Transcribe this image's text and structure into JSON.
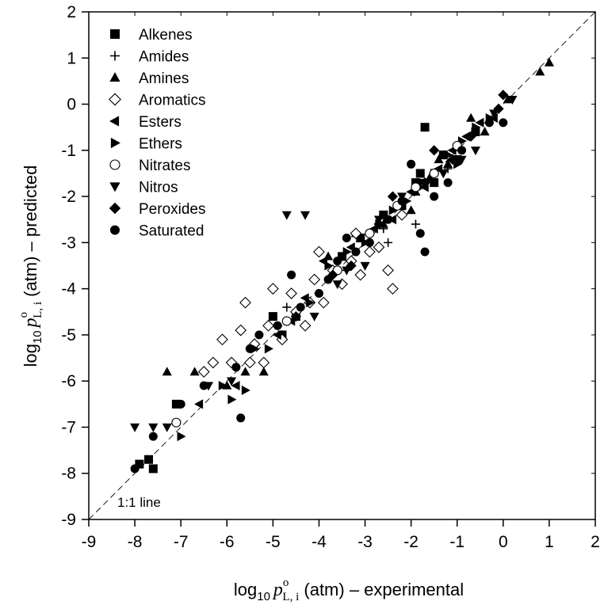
{
  "chart_data": {
    "type": "scatter",
    "xlabel": {
      "prefix": "log",
      "sub10": "10",
      "var": "p",
      "sup": "o",
      "sub": "L, i",
      "suffix": " (atm) – experimental"
    },
    "ylabel": {
      "prefix": "log",
      "sub10": "10",
      "var": "p",
      "sup": "o",
      "sub": "L, i",
      "suffix": " (atm) – predicted"
    },
    "xlim": [
      -9,
      2
    ],
    "ylim": [
      -9,
      2
    ],
    "x_ticks": [
      -9,
      -8,
      -7,
      -6,
      -5,
      -4,
      -3,
      -2,
      -1,
      0,
      1,
      2
    ],
    "y_ticks": [
      -9,
      -8,
      -7,
      -6,
      -5,
      -4,
      -3,
      -2,
      -1,
      0,
      1,
      2
    ],
    "x_tick_labels": [
      "-9",
      "-8",
      "-7",
      "-6",
      "-5",
      "-4",
      "-3",
      "-2",
      "-1",
      "0",
      "1",
      "2"
    ],
    "y_tick_labels": [
      "-9",
      "-8",
      "-7",
      "-6",
      "-5",
      "-4",
      "-3",
      "-2",
      "-1",
      "0",
      "1",
      "2"
    ],
    "legend_position": "top-left",
    "reference_line": {
      "label": "1:1 line",
      "from": [
        -9,
        -9
      ],
      "to": [
        2,
        2
      ],
      "style": "dashed"
    },
    "grid": false,
    "marker_color": "#000000",
    "series": [
      {
        "name": "Alkenes",
        "marker": "square",
        "points": [
          [
            -7.9,
            -7.8
          ],
          [
            -7.7,
            -7.7
          ],
          [
            -7.6,
            -7.9
          ],
          [
            -7.1,
            -6.5
          ],
          [
            -5.0,
            -4.6
          ],
          [
            -4.8,
            -5.0
          ],
          [
            -4.5,
            -4.6
          ],
          [
            -3.5,
            -3.3
          ],
          [
            -3.1,
            -2.9
          ],
          [
            -2.6,
            -2.4
          ],
          [
            -2.2,
            -2.2
          ],
          [
            -1.9,
            -1.7
          ],
          [
            -1.8,
            -1.5
          ],
          [
            -1.7,
            -0.5
          ],
          [
            -1.5,
            -1.7
          ],
          [
            -1.3,
            -1.1
          ],
          [
            -1.0,
            -1.2
          ],
          [
            -0.6,
            -0.6
          ]
        ]
      },
      {
        "name": "Amides",
        "marker": "plus",
        "points": [
          [
            -4.7,
            -4.4
          ],
          [
            -3.4,
            -3.6
          ],
          [
            -2.6,
            -2.7
          ],
          [
            -2.5,
            -3.0
          ],
          [
            -2.2,
            -2.4
          ],
          [
            -1.9,
            -2.6
          ],
          [
            -1.2,
            -1.4
          ]
        ]
      },
      {
        "name": "Amines",
        "marker": "triangle-up",
        "points": [
          [
            -7.3,
            -5.8
          ],
          [
            -6.7,
            -5.8
          ],
          [
            -6.0,
            -6.1
          ],
          [
            -5.6,
            -5.8
          ],
          [
            -5.2,
            -5.8
          ],
          [
            -3.8,
            -3.3
          ],
          [
            -3.2,
            -2.8
          ],
          [
            -2.6,
            -2.6
          ],
          [
            -2.0,
            -2.3
          ],
          [
            -1.6,
            -1.6
          ],
          [
            -1.2,
            -1.3
          ],
          [
            -1.0,
            -0.9
          ],
          [
            -0.7,
            -0.3
          ],
          [
            -0.4,
            -0.6
          ],
          [
            0.1,
            0.1
          ],
          [
            0.8,
            0.7
          ],
          [
            1.0,
            0.9
          ],
          [
            -1.4,
            -1.2
          ],
          [
            -1.9,
            -1.9
          ]
        ]
      },
      {
        "name": "Aromatics",
        "marker": "diamond-open",
        "points": [
          [
            -6.5,
            -5.8
          ],
          [
            -6.3,
            -5.6
          ],
          [
            -6.1,
            -5.1
          ],
          [
            -5.9,
            -5.6
          ],
          [
            -5.7,
            -4.9
          ],
          [
            -5.6,
            -4.3
          ],
          [
            -5.4,
            -5.2
          ],
          [
            -5.2,
            -5.6
          ],
          [
            -5.1,
            -4.8
          ],
          [
            -5.0,
            -4.0
          ],
          [
            -4.8,
            -5.1
          ],
          [
            -4.5,
            -4.5
          ],
          [
            -4.3,
            -4.8
          ],
          [
            -4.2,
            -4.3
          ],
          [
            -4.1,
            -3.8
          ],
          [
            -4.0,
            -3.2
          ],
          [
            -3.9,
            -4.3
          ],
          [
            -3.7,
            -3.6
          ],
          [
            -3.5,
            -3.9
          ],
          [
            -3.2,
            -2.8
          ],
          [
            -3.1,
            -3.7
          ],
          [
            -2.9,
            -3.2
          ],
          [
            -2.7,
            -3.1
          ],
          [
            -2.5,
            -3.6
          ],
          [
            -2.4,
            -4.0
          ],
          [
            -2.2,
            -2.4
          ],
          [
            -5.5,
            -5.6
          ],
          [
            -4.6,
            -4.1
          ],
          [
            -3.3,
            -3.4
          ]
        ]
      },
      {
        "name": "Esters",
        "marker": "triangle-left",
        "points": [
          [
            -6.6,
            -6.5
          ],
          [
            -5.8,
            -6.1
          ],
          [
            -4.9,
            -5.0
          ],
          [
            -4.6,
            -4.7
          ],
          [
            -4.3,
            -4.2
          ],
          [
            -3.9,
            -3.4
          ],
          [
            -3.3,
            -3.1
          ],
          [
            -2.8,
            -2.7
          ],
          [
            -2.4,
            -2.5
          ],
          [
            -2.0,
            -1.9
          ],
          [
            -1.7,
            -1.8
          ],
          [
            -1.4,
            -1.4
          ],
          [
            -1.1,
            -1.0
          ],
          [
            -0.8,
            -0.7
          ],
          [
            -0.5,
            -0.4
          ],
          [
            -0.2,
            -0.3
          ]
        ]
      },
      {
        "name": "Ethers",
        "marker": "triangle-right",
        "points": [
          [
            -7.0,
            -7.2
          ],
          [
            -6.1,
            -6.1
          ],
          [
            -5.9,
            -6.4
          ],
          [
            -5.6,
            -6.2
          ],
          [
            -5.4,
            -5.3
          ],
          [
            -5.1,
            -5.3
          ],
          [
            -4.2,
            -4.3
          ],
          [
            -3.8,
            -3.5
          ],
          [
            -3.4,
            -3.2
          ],
          [
            -3.0,
            -3.0
          ],
          [
            -2.7,
            -2.6
          ],
          [
            -2.4,
            -2.3
          ],
          [
            -2.1,
            -2.1
          ],
          [
            -1.8,
            -1.8
          ],
          [
            -1.5,
            -1.5
          ],
          [
            -1.2,
            -1.1
          ],
          [
            -0.9,
            -0.8
          ],
          [
            -0.6,
            -0.5
          ],
          [
            -0.3,
            -0.3
          ],
          [
            -1.0,
            -1.3
          ]
        ]
      },
      {
        "name": "Nitrates",
        "marker": "circle-open",
        "points": [
          [
            -7.1,
            -6.9
          ],
          [
            -4.7,
            -4.7
          ],
          [
            -3.6,
            -3.6
          ],
          [
            -2.9,
            -2.8
          ],
          [
            -2.3,
            -2.2
          ],
          [
            -1.9,
            -1.8
          ],
          [
            -1.5,
            -1.5
          ],
          [
            -1.0,
            -0.9
          ]
        ]
      },
      {
        "name": "Nitros",
        "marker": "triangle-down",
        "points": [
          [
            -8.0,
            -7.0
          ],
          [
            -7.6,
            -7.0
          ],
          [
            -7.3,
            -7.0
          ],
          [
            -6.4,
            -6.1
          ],
          [
            -5.9,
            -6.0
          ],
          [
            -4.7,
            -2.4
          ],
          [
            -4.3,
            -2.4
          ],
          [
            -4.1,
            -4.6
          ],
          [
            -3.6,
            -3.9
          ],
          [
            -3.4,
            -3.6
          ],
          [
            -3.0,
            -3.5
          ],
          [
            -2.7,
            -2.5
          ],
          [
            -2.2,
            -2.0
          ],
          [
            -1.8,
            -1.7
          ],
          [
            -1.3,
            -1.5
          ],
          [
            -0.9,
            -1.2
          ],
          [
            -0.6,
            -1.0
          ],
          [
            -0.2,
            -0.2
          ],
          [
            0.2,
            0.1
          ]
        ]
      },
      {
        "name": "Peroxides",
        "marker": "diamond",
        "points": [
          [
            -4.5,
            -4.6
          ],
          [
            -3.7,
            -3.7
          ],
          [
            -3.3,
            -3.5
          ],
          [
            -2.7,
            -2.6
          ],
          [
            -2.4,
            -2.0
          ],
          [
            -1.7,
            -1.7
          ],
          [
            -1.1,
            -1.2
          ],
          [
            -0.7,
            -0.7
          ],
          [
            0.0,
            0.2
          ],
          [
            -0.1,
            -0.1
          ],
          [
            -1.5,
            -1.0
          ]
        ]
      },
      {
        "name": "Saturated",
        "marker": "circle",
        "points": [
          [
            -8.0,
            -7.9
          ],
          [
            -7.6,
            -7.2
          ],
          [
            -7.0,
            -6.5
          ],
          [
            -6.5,
            -6.1
          ],
          [
            -5.8,
            -5.7
          ],
          [
            -5.7,
            -6.8
          ],
          [
            -5.5,
            -5.3
          ],
          [
            -5.3,
            -5.0
          ],
          [
            -4.9,
            -4.8
          ],
          [
            -4.6,
            -3.7
          ],
          [
            -4.4,
            -4.4
          ],
          [
            -4.0,
            -4.1
          ],
          [
            -3.8,
            -3.8
          ],
          [
            -3.6,
            -3.4
          ],
          [
            -3.2,
            -3.2
          ],
          [
            -2.9,
            -3.0
          ],
          [
            -2.5,
            -2.5
          ],
          [
            -2.2,
            -2.1
          ],
          [
            -1.8,
            -2.8
          ],
          [
            -1.7,
            -3.2
          ],
          [
            -1.5,
            -2.0
          ],
          [
            -1.2,
            -1.7
          ],
          [
            -0.9,
            -1.0
          ],
          [
            -0.6,
            -0.6
          ],
          [
            -0.3,
            -0.4
          ],
          [
            0.0,
            -0.4
          ],
          [
            -2.0,
            -1.3
          ],
          [
            -3.4,
            -2.9
          ]
        ]
      }
    ]
  }
}
